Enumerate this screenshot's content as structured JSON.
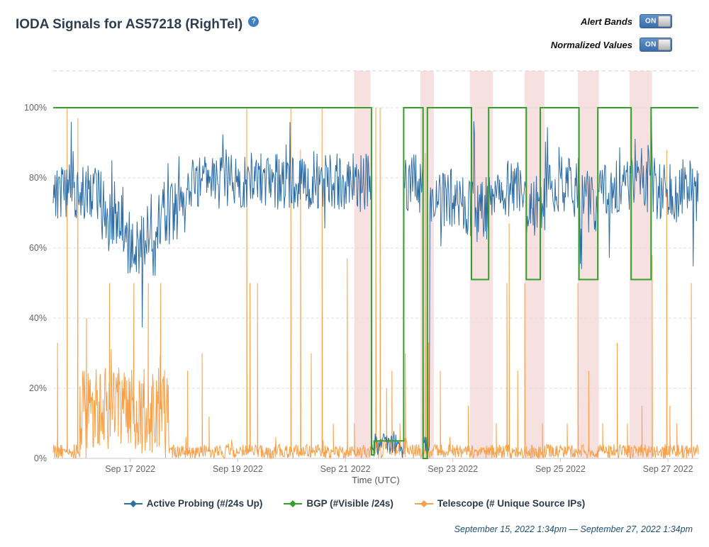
{
  "header": {
    "title": "IODA Signals for AS57218 (RighTel)",
    "help_icon": "?"
  },
  "toggles": [
    {
      "label": "Alert Bands",
      "state": "ON"
    },
    {
      "label": "Normalized Values",
      "state": "ON"
    }
  ],
  "footer": {
    "date_range": "September 15, 2022 1:34pm — September 27, 2022 1:34pm"
  },
  "ui_colors": {
    "title_text": "#2d3e50",
    "toggle_on_blue": "#3a6ca9",
    "help_icon_blue": "#3d7fc1",
    "footer_text": "#1d4f76"
  },
  "chart_data": {
    "type": "line",
    "title": "IODA Signals for AS57218 (RighTel)",
    "xlabel": "Time (UTC)",
    "ylabel": "",
    "ylim": [
      0,
      111
    ],
    "yticks": [
      0,
      20,
      40,
      60,
      80,
      100
    ],
    "ytick_suffix": "%",
    "grid": "dashed-horizontal",
    "legend_position": "bottom",
    "x_range_days": 12,
    "x_start": "September 15, 2022 1:34pm",
    "x_end": "September 27, 2022 1:34pm",
    "xticks": [
      {
        "day": 1.434,
        "label": "Sep 17 2022"
      },
      {
        "day": 3.434,
        "label": "Sep 19 2022"
      },
      {
        "day": 5.434,
        "label": "Sep 21 2022"
      },
      {
        "day": 7.434,
        "label": "Sep 23 2022"
      },
      {
        "day": 9.434,
        "label": "Sep 25 2022"
      },
      {
        "day": 11.434,
        "label": "Sep 27 2022"
      }
    ],
    "alert_band_color": "rgba(208,82,82,0.18)",
    "alert_bands": [
      {
        "start_day": 5.6,
        "end_day": 5.9
      },
      {
        "start_day": 6.83,
        "end_day": 7.08
      },
      {
        "start_day": 7.75,
        "end_day": 8.18
      },
      {
        "start_day": 8.77,
        "end_day": 9.14
      },
      {
        "start_day": 9.76,
        "end_day": 10.15
      },
      {
        "start_day": 10.72,
        "end_day": 11.14
      }
    ],
    "series": [
      {
        "name": "Active Probing (#/24s Up)",
        "color": "#2f6ea5",
        "style": "noisy-line",
        "seed": 7,
        "sample_step_days": 0.012,
        "segments": [
          {
            "from": 0,
            "to": 0.9,
            "base": 76,
            "noise": 8
          },
          {
            "from": 0.9,
            "to": 1.3,
            "base": 70,
            "noise": 9
          },
          {
            "from": 1.3,
            "to": 1.95,
            "base": 62,
            "noise": 10
          },
          {
            "from": 1.95,
            "to": 2.45,
            "base": 70,
            "noise": 9
          },
          {
            "from": 2.45,
            "to": 5.92,
            "base": 79,
            "noise": 8
          },
          {
            "from": 5.92,
            "to": 6.52,
            "base": 4,
            "noise": 3
          },
          {
            "from": 6.52,
            "to": 6.88,
            "base": 78,
            "noise": 9
          },
          {
            "from": 6.88,
            "to": 7.0,
            "base": 4,
            "noise": 3
          },
          {
            "from": 7.0,
            "to": 7.6,
            "base": 74,
            "noise": 9
          },
          {
            "from": 7.6,
            "to": 8.2,
            "base": 71,
            "noise": 10
          },
          {
            "from": 8.2,
            "to": 8.8,
            "base": 77,
            "noise": 8
          },
          {
            "from": 8.8,
            "to": 9.15,
            "base": 72,
            "noise": 9
          },
          {
            "from": 9.15,
            "to": 9.8,
            "base": 78,
            "noise": 8
          },
          {
            "from": 9.8,
            "to": 10.15,
            "base": 73,
            "noise": 9
          },
          {
            "from": 10.15,
            "to": 10.72,
            "base": 77,
            "noise": 8
          },
          {
            "from": 10.72,
            "to": 11.15,
            "base": 81,
            "noise": 9
          },
          {
            "from": 11.15,
            "to": 12.01,
            "base": 77,
            "noise": 9
          }
        ]
      },
      {
        "name": "BGP (#Visible /24s)",
        "color": "#33a02c",
        "style": "step-line",
        "steps": [
          {
            "from": 0,
            "to": 5.92,
            "value": 100
          },
          {
            "from": 5.92,
            "to": 5.97,
            "value": 1
          },
          {
            "from": 5.97,
            "to": 6.52,
            "value": 5
          },
          {
            "from": 6.52,
            "to": 6.88,
            "value": 100
          },
          {
            "from": 6.88,
            "to": 6.96,
            "value": 0
          },
          {
            "from": 6.96,
            "to": 7.78,
            "value": 100
          },
          {
            "from": 7.78,
            "to": 8.1,
            "value": 51
          },
          {
            "from": 8.1,
            "to": 8.8,
            "value": 100
          },
          {
            "from": 8.8,
            "to": 9.06,
            "value": 51
          },
          {
            "from": 9.06,
            "to": 9.78,
            "value": 100
          },
          {
            "from": 9.78,
            "to": 10.13,
            "value": 51
          },
          {
            "from": 10.13,
            "to": 10.75,
            "value": 100
          },
          {
            "from": 10.75,
            "to": 11.12,
            "value": 51
          },
          {
            "from": 11.12,
            "to": 12.01,
            "value": 100
          }
        ]
      },
      {
        "name": "Telescope (# Unique Source IPs)",
        "color": "#f9a048",
        "style": "noisy-line",
        "seed": 21,
        "sample_step_days": 0.01,
        "segments": [
          {
            "from": 0,
            "to": 0.5,
            "base": 2,
            "noise": 2
          },
          {
            "from": 0.5,
            "to": 2.15,
            "base": 14,
            "noise": 12
          },
          {
            "from": 2.15,
            "to": 5.9,
            "base": 2,
            "noise": 2
          },
          {
            "from": 5.9,
            "to": 6.6,
            "base": 3,
            "noise": 3
          },
          {
            "from": 6.6,
            "to": 12.01,
            "base": 2,
            "noise": 2
          }
        ],
        "spikes": [
          [
            0.08,
            33
          ],
          [
            0.26,
            100
          ],
          [
            0.46,
            97
          ],
          [
            0.62,
            40
          ],
          [
            1.05,
            50
          ],
          [
            1.5,
            50
          ],
          [
            1.77,
            50
          ],
          [
            2.0,
            50
          ],
          [
            2.5,
            25
          ],
          [
            2.77,
            30
          ],
          [
            2.9,
            12
          ],
          [
            3.6,
            100
          ],
          [
            3.66,
            50
          ],
          [
            3.8,
            50
          ],
          [
            4.42,
            100
          ],
          [
            4.6,
            88
          ],
          [
            4.8,
            30
          ],
          [
            5.0,
            100
          ],
          [
            5.21,
            10
          ],
          [
            5.47,
            57
          ],
          [
            5.6,
            10
          ],
          [
            6.0,
            100
          ],
          [
            6.08,
            100
          ],
          [
            6.2,
            20
          ],
          [
            6.3,
            25
          ],
          [
            6.45,
            10
          ],
          [
            6.55,
            30
          ],
          [
            6.92,
            87
          ],
          [
            6.98,
            33
          ],
          [
            7.2,
            25
          ],
          [
            7.72,
            15
          ],
          [
            8.24,
            10
          ],
          [
            8.44,
            50
          ],
          [
            8.48,
            67
          ],
          [
            8.64,
            25
          ],
          [
            8.77,
            50
          ],
          [
            9.1,
            10
          ],
          [
            9.56,
            10
          ],
          [
            9.76,
            50
          ],
          [
            9.96,
            25
          ],
          [
            10.22,
            10
          ],
          [
            10.49,
            33
          ],
          [
            10.68,
            10
          ],
          [
            10.95,
            15
          ],
          [
            11.14,
            58
          ],
          [
            11.41,
            88
          ],
          [
            11.47,
            15
          ],
          [
            11.6,
            10
          ],
          [
            11.87,
            50
          ]
        ]
      }
    ]
  }
}
